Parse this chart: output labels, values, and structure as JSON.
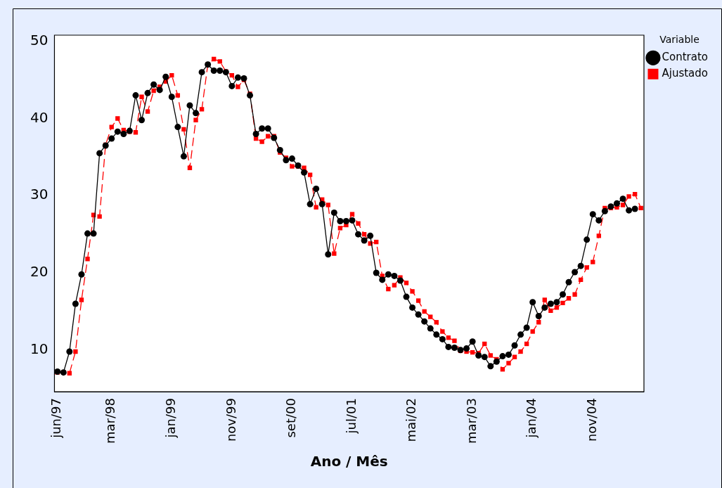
{
  "chart_data": {
    "type": "line",
    "xlabel": "Ano / Mês",
    "legend_title": "Variable",
    "legend": "top right",
    "grid": false,
    "categories": [
      "jun/97",
      null,
      null,
      null,
      null,
      null,
      null,
      null,
      null,
      "mar/98",
      null,
      null,
      null,
      null,
      null,
      null,
      null,
      null,
      null,
      "jan/99",
      null,
      null,
      null,
      null,
      null,
      null,
      null,
      null,
      null,
      "nov/99",
      null,
      null,
      null,
      null,
      null,
      null,
      null,
      null,
      null,
      "set/00",
      null,
      null,
      null,
      null,
      null,
      null,
      null,
      null,
      null,
      "jul/01",
      null,
      null,
      null,
      null,
      null,
      null,
      null,
      null,
      null,
      "mai/02",
      null,
      null,
      null,
      null,
      null,
      null,
      null,
      null,
      null,
      "mar/03",
      null,
      null,
      null,
      null,
      null,
      null,
      null,
      null,
      null,
      "jan/04",
      null,
      null,
      null,
      null,
      null,
      null,
      null,
      null,
      null,
      "nov/04",
      null,
      null,
      null,
      null,
      null,
      null,
      null,
      null
    ],
    "ylim": [
      4.6,
      50.8
    ],
    "yticks": [
      10,
      20,
      30,
      40,
      50
    ],
    "series": [
      {
        "name": "Contrato",
        "color": "#000000",
        "marker": "circle",
        "line_style": "solid",
        "values": [
          7.2,
          7.1,
          9.8,
          16.0,
          19.8,
          25.1,
          25.1,
          35.5,
          36.5,
          37.4,
          38.3,
          38.0,
          38.4,
          43.0,
          39.8,
          43.3,
          44.4,
          43.7,
          45.4,
          42.8,
          38.9,
          35.1,
          41.7,
          40.7,
          46.0,
          47.0,
          46.2,
          46.2,
          46.0,
          44.2,
          45.3,
          45.2,
          43.0,
          38.0,
          38.7,
          38.7,
          37.5,
          35.9,
          34.6,
          34.8,
          33.9,
          33.0,
          28.9,
          30.9,
          28.9,
          22.4,
          27.8,
          26.7,
          26.7,
          26.8,
          25.0,
          24.2,
          24.8,
          20.0,
          19.1,
          19.8,
          19.6,
          19.0,
          16.9,
          15.5,
          14.6,
          13.7,
          12.8,
          12.0,
          11.4,
          10.4,
          10.3,
          10.0,
          10.2,
          11.1,
          9.3,
          9.1,
          7.9,
          8.5,
          9.2,
          9.4,
          10.6,
          12.0,
          12.9,
          16.2,
          14.4,
          15.5,
          16.0,
          16.2,
          17.2,
          18.8,
          20.1,
          20.9,
          24.3,
          27.6,
          26.8,
          28.0,
          28.6,
          29.0,
          29.6,
          28.1,
          28.3,
          null
        ]
      },
      {
        "name": "Ajustado",
        "color": "#ff0000",
        "marker": "square",
        "line_style": "dashed",
        "values": [
          7.1,
          7.1,
          7.0,
          9.8,
          16.5,
          21.8,
          27.5,
          27.3,
          36.6,
          38.9,
          40.0,
          38.5,
          38.3,
          38.2,
          42.8,
          40.9,
          43.6,
          44.1,
          44.8,
          45.6,
          43.0,
          38.6,
          33.6,
          39.8,
          41.2,
          47.0,
          47.7,
          47.4,
          46.1,
          45.6,
          44.1,
          45.0,
          43.2,
          37.4,
          37.0,
          37.7,
          37.7,
          35.6,
          34.9,
          33.8,
          33.8,
          33.6,
          32.7,
          28.5,
          29.5,
          28.8,
          22.5,
          25.8,
          26.2,
          27.6,
          26.4,
          25.0,
          23.8,
          24.0,
          19.6,
          17.9,
          18.4,
          19.4,
          18.7,
          17.6,
          16.4,
          15.0,
          14.3,
          13.6,
          12.4,
          11.6,
          11.2,
          9.9,
          9.8,
          9.7,
          9.6,
          10.8,
          9.3,
          8.8,
          7.5,
          8.3,
          9.1,
          9.8,
          10.8,
          12.4,
          13.6,
          16.5,
          15.1,
          15.5,
          16.1,
          16.7,
          17.2,
          19.1,
          20.7,
          21.4,
          24.8,
          28.4,
          28.4,
          28.5,
          28.8,
          29.9,
          30.2,
          28.4
        ]
      }
    ]
  }
}
